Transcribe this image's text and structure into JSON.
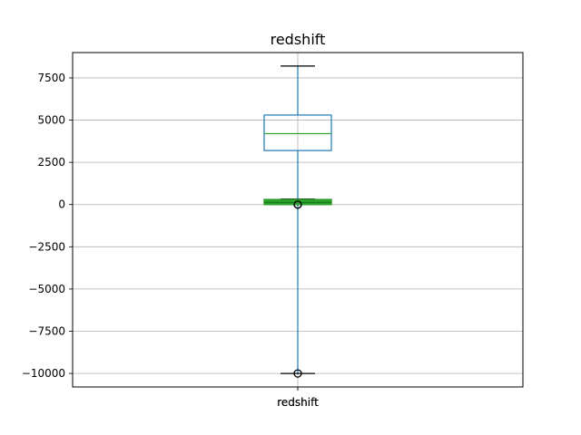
{
  "chart_data": {
    "type": "boxplot",
    "title": "redshift",
    "categories": [
      "redshift"
    ],
    "ylim": [
      -10800,
      9000
    ],
    "y_ticks": [
      -10000,
      -7500,
      -5000,
      -2500,
      0,
      2500,
      5000,
      7500
    ],
    "y_tick_labels": [
      "−10000",
      "−7500",
      "−5000",
      "−2500",
      "0",
      "2500",
      "5000",
      "7500"
    ],
    "grid": true,
    "boxes": [
      {
        "name": "redshift",
        "whisker_low": -10000,
        "q1": 3200,
        "median": 4200,
        "q3": 5300,
        "whisker_high": 8200,
        "outliers": [
          0,
          -10000
        ]
      },
      {
        "name": "redshift",
        "whisker_low": 0,
        "q1": 0,
        "median": 120,
        "q3": 300,
        "whisker_high": 330,
        "outliers": [
          0
        ]
      }
    ],
    "colors": {
      "box_primary": "#1f77b4",
      "box_secondary": "#2ca02c",
      "median": "#2ca02c",
      "whisker": "#1f77b4",
      "grid": "#b0b0b0",
      "axis": "#000000"
    }
  }
}
